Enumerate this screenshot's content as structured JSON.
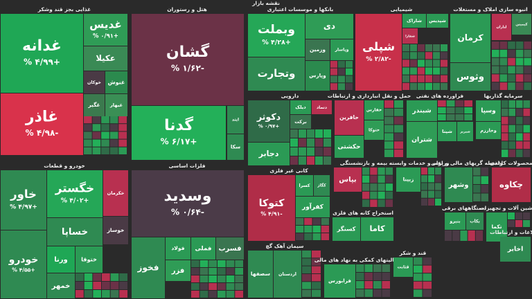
{
  "chart_data": {
    "type": "treemap",
    "title": "نقشه بازار",
    "groups": [
      {
        "name": "غذایی بجز قند وشکر",
        "tiles": [
          {
            "name": "غدانه",
            "value": 4.99,
            "value_label": "+۴/۹۹ %",
            "color": "#1fa755"
          },
          {
            "name": "غاذر",
            "value": -4.98,
            "value_label": "-۴/۹۸ %",
            "color": "#d9324b"
          },
          {
            "name": "غدیس",
            "value": 0.91,
            "value_label": "+۰/۹۱ %",
            "color": "#2f9c56"
          },
          {
            "name": "عکیلا",
            "color": "#3a8a55"
          },
          {
            "name": "خوکان",
            "color": "#4a3a45"
          },
          {
            "name": "غنوش",
            "color": "#2b8a4e"
          },
          {
            "name": "غگیر",
            "color": "#3b7a4e"
          },
          {
            "name": "غبهار",
            "color": "#3a8f55"
          }
        ]
      },
      {
        "name": "هتل و رستوران",
        "tiles": [
          {
            "name": "گشان",
            "value": -1.62,
            "value_label": "-۱/۶۲ %",
            "color": "#6b3247"
          },
          {
            "name": "گدنا",
            "value": 6.17,
            "value_label": "+۶/۱۷ %",
            "color": "#23b059"
          },
          {
            "name": "ایتد",
            "color": "#2f8a52"
          },
          {
            "name": "سکا",
            "color": "#2f8a52"
          }
        ]
      },
      {
        "name": "بانکها و موسسات اعتباری",
        "tiles": [
          {
            "name": "وبملت",
            "value": 4.28,
            "value_label": "+۴/۲۸ %",
            "color": "#25a757"
          },
          {
            "name": "وتجارت",
            "color": "#2f8a52"
          },
          {
            "name": "دی",
            "color": "#2f9c56"
          },
          {
            "name": "وزمین",
            "color": "#3a7550"
          },
          {
            "name": "وپاسار",
            "color": "#2b9a55"
          },
          {
            "name": "وپارس",
            "color": "#2b8a4e"
          }
        ]
      },
      {
        "name": "شیمیایی",
        "tiles": [
          {
            "name": "شپلی",
            "value": -2.82,
            "value_label": "-۲/۸۲ %",
            "color": "#c8304a"
          },
          {
            "name": "شاراک",
            "color": "#2b9a55"
          },
          {
            "name": "شپدیس",
            "color": "#2b9a55"
          },
          {
            "name": "شفارا",
            "color": "#b83050"
          }
        ]
      },
      {
        "name": "انبوه سازی املاک و مستغلات",
        "tiles": [
          {
            "name": "کرمان",
            "color": "#2b9a55"
          },
          {
            "name": "وثوس",
            "color": "#2f8a52"
          },
          {
            "name": "لتاران",
            "color": "#b83050"
          },
          {
            "name": "کیمیتن",
            "color": "#3a8a55"
          }
        ]
      },
      {
        "name": "دارویی",
        "tiles": [
          {
            "name": "دکوثر",
            "value": 0.97,
            "value_label": "+۰/۹۷ %",
            "color": "#2f6b48"
          },
          {
            "name": "دجابر",
            "color": "#2b9a55"
          },
          {
            "name": "دیلک",
            "color": "#2b9a55"
          },
          {
            "name": "دتماد",
            "color": "#b83050"
          },
          {
            "name": "برکت",
            "color": "#3a7550"
          }
        ]
      },
      {
        "name": "حمل و نقل انبارداری و ارتباطات",
        "tiles": [
          {
            "name": "حافرین",
            "color": "#b83050"
          },
          {
            "name": "حکشتی",
            "color": "#2b9a55"
          },
          {
            "name": "حفارس",
            "color": "#2b9a55"
          },
          {
            "name": "حتوکا",
            "color": "#2f9c56"
          }
        ]
      },
      {
        "name": "فراورده های نفتی",
        "tiles": [
          {
            "name": "شبندر",
            "color": "#2b9a55"
          },
          {
            "name": "شتران",
            "color": "#2f9c56"
          },
          {
            "name": "شپنا",
            "color": "#2b9a55"
          },
          {
            "name": "شبریز",
            "color": "#2b9a55"
          }
        ]
      },
      {
        "name": "سرمایه گذاریها",
        "tiles": [
          {
            "name": "وسپا",
            "color": "#2b9a55"
          },
          {
            "name": "وخارزم",
            "color": "#2b9a55"
          }
        ]
      },
      {
        "name": "خودرو و قطعات",
        "tiles": [
          {
            "name": "خاور",
            "value": 4.97,
            "value_label": "+۴/۹۷ %",
            "color": "#2f8a52"
          },
          {
            "name": "خگستر",
            "value": 4.02,
            "value_label": "+۴/۰۲ %",
            "color": "#25a757"
          },
          {
            "name": "خکرمان",
            "color": "#b83050"
          },
          {
            "name": "خودرو",
            "value": 4.55,
            "value_label": "+۴/۵۵ %",
            "color": "#2f8a52"
          },
          {
            "name": "خساپا",
            "color": "#2f8a52"
          },
          {
            "name": "خوساز",
            "color": "#4a3a45"
          },
          {
            "name": "ورنا",
            "color": "#1fa755"
          },
          {
            "name": "ختوقا",
            "color": "#2b9a55"
          },
          {
            "name": "خمهر",
            "color": "#2f8a52"
          }
        ]
      },
      {
        "name": "فلزات اساسی",
        "tiles": [
          {
            "name": "وسدید",
            "value": -0.64,
            "value_label": "-۰/۶۴ %",
            "color": "#4b3b48"
          },
          {
            "name": "فخوز",
            "color": "#2f8a52"
          },
          {
            "name": "فولاد",
            "color": "#2b9a55"
          },
          {
            "name": "فزر",
            "color": "#2f9c56"
          },
          {
            "name": "فملی",
            "color": "#2b9a55"
          },
          {
            "name": "فسرب",
            "color": "#3a7550"
          }
        ]
      },
      {
        "name": "کانی غیر فلزی",
        "tiles": [
          {
            "name": "کتوکا",
            "value": -4.91,
            "value_label": "-۴/۹۱ %",
            "color": "#b02d48"
          },
          {
            "name": "کسرا",
            "color": "#2b9a55"
          },
          {
            "name": "کگاز",
            "color": "#2f8a52"
          },
          {
            "name": "کفرآور",
            "color": "#2b9a55"
          }
        ]
      },
      {
        "name": "بیمه و بازنشستگی",
        "tiles": [
          {
            "name": "بپاس",
            "color": "#b83050"
          }
        ]
      },
      {
        "name": "زراعت و خدمات وابسته",
        "tiles": [
          {
            "name": "زبینا",
            "color": "#2b9a55"
          }
        ]
      },
      {
        "name": "واسطه گریهای مالی و پولی",
        "tiles": [
          {
            "name": "وشهر",
            "color": "#2f8a52"
          }
        ]
      },
      {
        "name": "محصولات کاغذی",
        "tiles": [
          {
            "name": "چکاوه",
            "color": "#b02d48"
          }
        ]
      },
      {
        "name": "استخراج کانه های فلزی",
        "tiles": [
          {
            "name": "کسنگر",
            "color": "#2b9a55"
          },
          {
            "name": "کاما",
            "color": "#2b9a55"
          }
        ]
      },
      {
        "name": "دستگاههای برقی",
        "tiles": [
          {
            "name": "بنیرو",
            "color": "#2b9a55"
          },
          {
            "name": "بکاب",
            "color": "#2f8a52"
          }
        ]
      },
      {
        "name": "ماشین آلات و تجهیزات",
        "tiles": [
          {
            "name": "تکما",
            "color": "#2b9a55"
          }
        ]
      },
      {
        "name": "سیمان آهک گچ",
        "tiles": [
          {
            "name": "سصفها",
            "color": "#2f8a52"
          },
          {
            "name": "اردستان",
            "color": "#2f8a52"
          }
        ]
      },
      {
        "name": "فعالیتهای کمکی به نهاد های مالی",
        "tiles": [
          {
            "name": "فرابورس",
            "color": "#2b9a55"
          }
        ]
      },
      {
        "name": "قند و شکر",
        "tiles": [
          {
            "name": "قثابت",
            "color": "#2b9a55"
          }
        ]
      },
      {
        "name": "اطلاعات و ارتباطات",
        "tiles": [
          {
            "name": "اخابر",
            "color": "#2f8a52"
          }
        ]
      }
    ]
  }
}
